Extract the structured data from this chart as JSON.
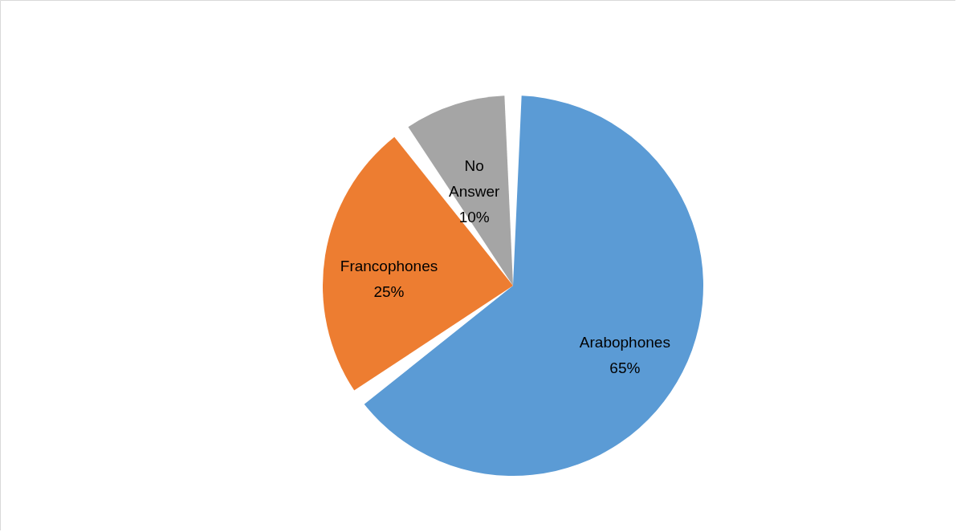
{
  "chart_data": {
    "type": "pie",
    "categories": [
      "Arabophones",
      "Francophones",
      "No Answer"
    ],
    "values": [
      65,
      25,
      10
    ],
    "value_labels": [
      "65%",
      "25%",
      "10%"
    ],
    "colors": [
      "#5b9bd5",
      "#ed7d31",
      "#a5a5a5"
    ]
  }
}
